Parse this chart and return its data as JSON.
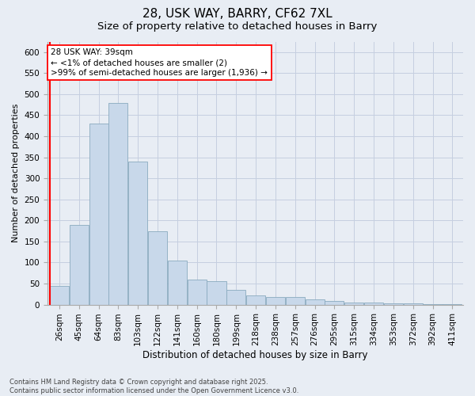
{
  "title": "28, USK WAY, BARRY, CF62 7XL",
  "subtitle": "Size of property relative to detached houses in Barry",
  "xlabel": "Distribution of detached houses by size in Barry",
  "ylabel": "Number of detached properties",
  "categories": [
    "26sqm",
    "45sqm",
    "64sqm",
    "83sqm",
    "103sqm",
    "122sqm",
    "141sqm",
    "160sqm",
    "180sqm",
    "199sqm",
    "218sqm",
    "238sqm",
    "257sqm",
    "276sqm",
    "295sqm",
    "315sqm",
    "334sqm",
    "353sqm",
    "372sqm",
    "392sqm",
    "411sqm"
  ],
  "values": [
    45,
    190,
    430,
    480,
    340,
    175,
    105,
    60,
    55,
    35,
    22,
    18,
    18,
    12,
    8,
    5,
    4,
    3,
    3,
    2,
    2
  ],
  "bar_color": "#c8d8ea",
  "bar_edge_color": "#8aaabf",
  "annotation_text": "28 USK WAY: 39sqm\n← <1% of detached houses are smaller (2)\n>99% of semi-detached houses are larger (1,936) →",
  "vline_x": -0.5,
  "ylim": [
    0,
    625
  ],
  "yticks": [
    0,
    50,
    100,
    150,
    200,
    250,
    300,
    350,
    400,
    450,
    500,
    550,
    600
  ],
  "grid_color": "#c5cfe0",
  "background_color": "#e8edf4",
  "footnote": "Contains HM Land Registry data © Crown copyright and database right 2025.\nContains public sector information licensed under the Open Government Licence v3.0.",
  "title_fontsize": 11,
  "subtitle_fontsize": 9.5,
  "xlabel_fontsize": 8.5,
  "ylabel_fontsize": 8,
  "tick_fontsize": 7.5,
  "footnote_fontsize": 6,
  "annotation_fontsize": 7.5
}
